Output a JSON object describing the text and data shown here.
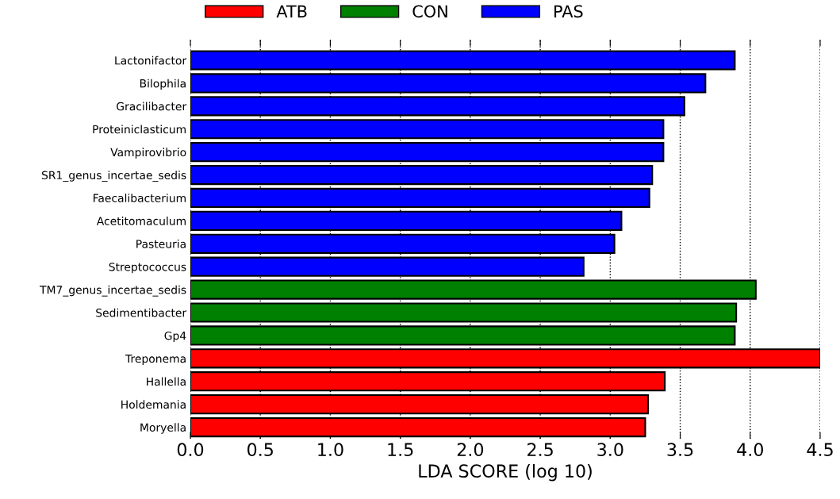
{
  "chart_data": {
    "type": "bar",
    "orientation": "horizontal",
    "xlabel": "LDA SCORE (log 10)",
    "categories": [
      "Lactonifactor",
      "Bilophila",
      "Gracilibacter",
      "Proteiniclasticum",
      "Vampirovibrio",
      "SR1_genus_incertae_sedis",
      "Faecalibacterium",
      "Acetitomaculum",
      "Pasteuria",
      "Streptococcus",
      "TM7_genus_incertae_sedis",
      "Sedimentibacter",
      "Gp4",
      "Treponema",
      "Hallella",
      "Holdemania",
      "Moryella"
    ],
    "series": [
      {
        "name": "ATB",
        "color": "#ff0000",
        "values": [
          null,
          null,
          null,
          null,
          null,
          null,
          null,
          null,
          null,
          null,
          null,
          null,
          null,
          4.5,
          3.39,
          3.27,
          3.25
        ]
      },
      {
        "name": "CON",
        "color": "#008000",
        "values": [
          null,
          null,
          null,
          null,
          null,
          null,
          null,
          null,
          null,
          null,
          4.04,
          3.9,
          3.89,
          null,
          null,
          null,
          null
        ]
      },
      {
        "name": "PAS",
        "color": "#0000ff",
        "values": [
          3.89,
          3.68,
          3.53,
          3.38,
          3.38,
          3.3,
          3.28,
          3.08,
          3.03,
          2.81,
          null,
          null,
          null,
          null,
          null,
          null,
          null
        ]
      }
    ],
    "xlim": [
      0,
      4.5
    ],
    "xticks": [
      {
        "value": 0,
        "label": "0.0"
      },
      0.5,
      {
        "value": 1,
        "label": "1.0"
      },
      1.5,
      {
        "value": 2,
        "label": "2.0"
      },
      2.5,
      {
        "value": 3,
        "label": "3.0"
      },
      3.5,
      {
        "value": 4,
        "label": "4.0"
      },
      4.5
    ],
    "grid": "x",
    "legend": "top"
  }
}
